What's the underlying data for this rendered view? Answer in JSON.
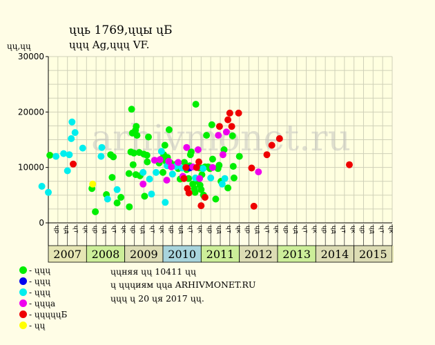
{
  "title": {
    "line1": "ųųь 1769,ųųы ųБ",
    "line2": "ųųų Ag,ųųų VF."
  },
  "y_unit": "ųų,ųų",
  "notes": [
    "ųųняя ųų 10411 ųų",
    "ų ųųųиям ųųа ARHIVMONET.RU",
    "ųųų ų 20 ųя 2017 ųų."
  ],
  "watermark": "arhivmonet.ru",
  "legend": [
    {
      "label": "- ųųų",
      "color": "#00ee00"
    },
    {
      "label": "- ųųų",
      "color": "#0000ee"
    },
    {
      "label": "- ųųų",
      "color": "#00eeee"
    },
    {
      "label": "- ųųųа",
      "color": "#ee00ee"
    },
    {
      "label": "- ųųųųųБ",
      "color": "#ee0000"
    },
    {
      "label": "- ųų",
      "color": "#ffff00"
    }
  ],
  "chart_data": {
    "type": "scatter",
    "ylim": [
      0,
      30000
    ],
    "yticks": [
      "0",
      "10000",
      "20000",
      "30000"
    ],
    "grid": true,
    "quarter_labels": [
      "ųр",
      "ųд",
      "ųт",
      "ųк"
    ],
    "years": [
      "2007",
      "2008",
      "2009",
      "2010",
      "2011",
      "2012",
      "2013",
      "2014",
      "2015"
    ],
    "year_colors": [
      "#e6e6b4",
      "#ccee99",
      "#dcdcb4",
      "#a8d4dc",
      "#ccee99",
      "#dcdcb4",
      "#ccee99",
      "#dcdcb4",
      "#dcdcb4"
    ],
    "xlim": [
      2007.0,
      2016.0
    ],
    "series": [
      {
        "color": "#00ee00",
        "points": [
          [
            2007.04,
            12200
          ],
          [
            2008.14,
            6200
          ],
          [
            2008.23,
            2000
          ],
          [
            2008.52,
            5100
          ],
          [
            2008.63,
            12300
          ],
          [
            2008.67,
            8200
          ],
          [
            2008.7,
            11900
          ],
          [
            2008.8,
            3600
          ],
          [
            2008.9,
            4600
          ],
          [
            2009.12,
            2900
          ],
          [
            2009.11,
            8900
          ],
          [
            2009.16,
            12800
          ],
          [
            2009.18,
            20500
          ],
          [
            2009.2,
            16200
          ],
          [
            2009.22,
            10500
          ],
          [
            2009.24,
            12600
          ],
          [
            2009.28,
            16700
          ],
          [
            2009.3,
            17400
          ],
          [
            2009.29,
            8700
          ],
          [
            2009.32,
            15800
          ],
          [
            2009.38,
            12700
          ],
          [
            2009.4,
            8500
          ],
          [
            2009.5,
            12400
          ],
          [
            2009.52,
            4800
          ],
          [
            2009.58,
            12200
          ],
          [
            2009.59,
            11000
          ],
          [
            2009.62,
            15500
          ],
          [
            2009.9,
            10800
          ],
          [
            2009.95,
            11500
          ],
          [
            2010.0,
            9100
          ],
          [
            2010.02,
            12300
          ],
          [
            2010.05,
            14000
          ],
          [
            2010.08,
            11100
          ],
          [
            2010.12,
            11800
          ],
          [
            2010.16,
            16800
          ],
          [
            2010.2,
            10800
          ],
          [
            2010.3,
            10300
          ],
          [
            2010.35,
            10600
          ],
          [
            2010.4,
            9800
          ],
          [
            2010.45,
            7900
          ],
          [
            2010.52,
            8300
          ],
          [
            2010.56,
            10900
          ],
          [
            2010.62,
            9600
          ],
          [
            2010.67,
            8000
          ],
          [
            2010.7,
            10300
          ],
          [
            2010.72,
            12300
          ],
          [
            2010.74,
            12800
          ],
          [
            2010.78,
            7000
          ],
          [
            2010.82,
            6200
          ],
          [
            2010.84,
            5500
          ],
          [
            2010.86,
            21400
          ],
          [
            2010.9,
            7500
          ],
          [
            2010.95,
            9900
          ],
          [
            2010.97,
            6800
          ],
          [
            2011.0,
            6000
          ],
          [
            2011.02,
            8700
          ],
          [
            2011.04,
            9900
          ],
          [
            2011.06,
            5000
          ],
          [
            2011.1,
            10100
          ],
          [
            2011.14,
            15800
          ],
          [
            2011.18,
            10100
          ],
          [
            2011.23,
            9800
          ],
          [
            2011.28,
            17700
          ],
          [
            2011.3,
            11500
          ],
          [
            2011.38,
            4300
          ],
          [
            2011.44,
            9800
          ],
          [
            2011.47,
            10400
          ],
          [
            2011.52,
            7500
          ],
          [
            2011.6,
            13200
          ],
          [
            2011.7,
            6300
          ],
          [
            2011.82,
            15700
          ],
          [
            2011.84,
            10200
          ],
          [
            2011.86,
            8100
          ],
          [
            2012.0,
            12000
          ]
        ]
      },
      {
        "color": "#0000ee",
        "points": [
          [
            2010.7,
            9900
          ]
        ]
      },
      {
        "color": "#00eeee",
        "points": [
          [
            2006.83,
            6600
          ],
          [
            2007.0,
            5500
          ],
          [
            2007.2,
            12000
          ],
          [
            2007.4,
            12500
          ],
          [
            2007.5,
            9400
          ],
          [
            2007.55,
            12300
          ],
          [
            2007.6,
            15200
          ],
          [
            2007.62,
            18200
          ],
          [
            2007.7,
            16300
          ],
          [
            2007.9,
            13500
          ],
          [
            2008.55,
            4300
          ],
          [
            2008.38,
            12000
          ],
          [
            2008.4,
            13600
          ],
          [
            2008.8,
            6000
          ],
          [
            2009.48,
            9100
          ],
          [
            2009.65,
            7900
          ],
          [
            2009.7,
            5200
          ],
          [
            2009.82,
            9100
          ],
          [
            2009.96,
            12900
          ],
          [
            2010.06,
            3700
          ],
          [
            2010.11,
            10300
          ],
          [
            2010.25,
            8800
          ],
          [
            2010.34,
            10200
          ],
          [
            2010.5,
            9900
          ],
          [
            2010.85,
            8100
          ],
          [
            2011.05,
            9800
          ],
          [
            2011.25,
            8100
          ],
          [
            2011.55,
            7000
          ],
          [
            2011.62,
            8000
          ]
        ]
      },
      {
        "color": "#ee00ee",
        "points": [
          [
            2009.48,
            7000
          ],
          [
            2009.78,
            11300
          ],
          [
            2009.92,
            11400
          ],
          [
            2010.1,
            7700
          ],
          [
            2010.15,
            11100
          ],
          [
            2010.22,
            10100
          ],
          [
            2010.4,
            10900
          ],
          [
            2010.52,
            8400
          ],
          [
            2010.62,
            13600
          ],
          [
            2010.78,
            10100
          ],
          [
            2010.92,
            13200
          ],
          [
            2010.96,
            8000
          ],
          [
            2011.3,
            10000
          ],
          [
            2011.45,
            15800
          ],
          [
            2011.57,
            12300
          ],
          [
            2011.66,
            16400
          ],
          [
            2012.5,
            9200
          ]
        ]
      },
      {
        "color": "#ee0000",
        "points": [
          [
            2007.65,
            10600
          ],
          [
            2010.55,
            8000
          ],
          [
            2010.6,
            10000
          ],
          [
            2010.68,
            5400
          ],
          [
            2010.64,
            6200
          ],
          [
            2010.88,
            10000
          ],
          [
            2010.94,
            11000
          ],
          [
            2011.0,
            3100
          ],
          [
            2011.1,
            4600
          ],
          [
            2011.48,
            17400
          ],
          [
            2011.7,
            18600
          ],
          [
            2011.75,
            19800
          ],
          [
            2011.8,
            17400
          ],
          [
            2011.98,
            19800
          ],
          [
            2012.32,
            9900
          ],
          [
            2012.38,
            3000
          ],
          [
            2012.72,
            12300
          ],
          [
            2012.85,
            14000
          ],
          [
            2013.05,
            15200
          ],
          [
            2014.88,
            10500
          ]
        ]
      },
      {
        "color": "#ffff00",
        "points": [
          [
            2008.16,
            7000
          ]
        ]
      }
    ]
  }
}
